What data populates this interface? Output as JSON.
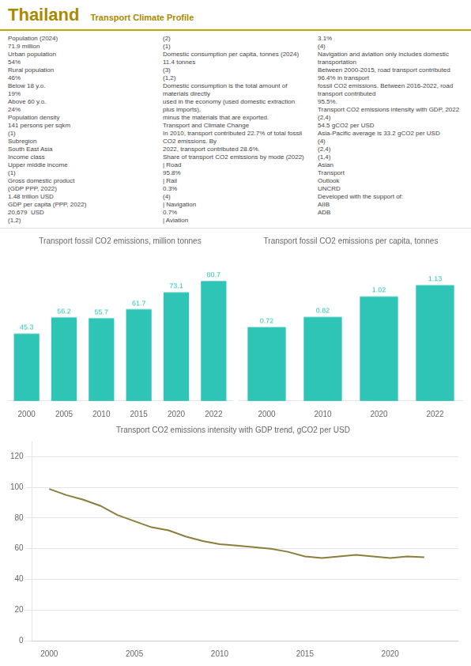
{
  "title": "Thailand",
  "subtitle": "Transport Climate Profile",
  "annotations": [
    "Population (2024)",
    "71.9 million",
    "Urban population",
    "54%",
    "Rural population",
    "46%",
    "Below 18 y.o.",
    "19%",
    "Above 60 y.o.",
    "24%",
    "Population density",
    "141 persons per sqkm",
    "(1)",
    "Subregion",
    "South East Asia",
    "Income class",
    "Upper middle income",
    "(1)",
    "Gross domestic product",
    "(GDP PPP, 2022)",
    "1.48 trillion USD",
    "GDP per capita (PPP, 2022)",
    "20,679  USD",
    "(1,2)",
    "(2)",
    "(1)",
    "Domestic consumption per capita, tonnes (2024)",
    "11.4 tonnes",
    "(3)",
    "(1,2)",
    "Domestic consumption is the total amount of materials directly",
    "used in the economy (used domestic extraction plus imports),",
    "minus the materials that are exported.",
    "Transport and Climate Change",
    "In 2010, transport contributed 22.7% of total fossil CO2 emissions. By\n2022, transport contributed 28.6%.",
    "Share of transport CO2 emissions by mode (2022)",
    "| Road",
    "95.8%",
    "| Rail",
    "0.3%",
    "(4)",
    "| Navigation",
    "0.7%",
    "| Aviation",
    "3.1%",
    "(4)",
    "Navigation and aviation only includes domestic transportation",
    "Between 2000-2015, road transport contributed 96.4% in transport\nfossil CO2 emissions. Between 2016-2022, road transport contributed\n95.5%.",
    "Transport CO2 emissions intensity with GDP, 2022",
    "(2,4)",
    "54.5 gCO2 per USD",
    "Asia-Pacific average is 33.2 gCO2 per USD",
    "(4)",
    "(2,4)",
    "(1,4)",
    "Asian",
    "Transport",
    "Outlook",
    "UNCRD",
    "Developed with the support of:",
    "AIIB",
    "ADB"
  ],
  "chart_data": [
    {
      "type": "bar",
      "title": "Transport fossil CO2 emissions, million tonnes",
      "categories": [
        "2000",
        "2005",
        "2010",
        "2015",
        "2020",
        "2022"
      ],
      "values": [
        45.3,
        56.2,
        55.7,
        61.7,
        73.1,
        80.7
      ],
      "color": "#2EC4B6",
      "ylim": [
        0,
        100
      ],
      "data_labels": true,
      "tick_labels": "x",
      "grid": false
    },
    {
      "type": "bar",
      "title": "Transport fossil CO2 emissions per capita, tonnes",
      "categories": [
        "2000",
        "2010",
        "2020",
        "2022"
      ],
      "values": [
        0.72,
        0.82,
        1.02,
        1.13
      ],
      "color": "#2EC4B6",
      "ylim": [
        0,
        1.45
      ],
      "data_labels": true,
      "tick_labels": "x",
      "grid": false
    },
    {
      "type": "line",
      "title": "Transport CO2 emissions intensity with GDP trend, gCO2 per USD",
      "x": [
        2000,
        2001,
        2002,
        2003,
        2004,
        2005,
        2006,
        2007,
        2008,
        2009,
        2010,
        2011,
        2012,
        2013,
        2014,
        2015,
        2016,
        2017,
        2018,
        2019,
        2020,
        2021,
        2022
      ],
      "values": [
        99,
        95,
        92,
        88,
        82,
        78,
        74,
        72,
        68,
        65,
        63,
        62,
        61,
        60,
        58,
        55,
        54,
        55,
        56,
        55,
        54,
        55,
        54.5
      ],
      "color": "#8B7D3A",
      "xlim": [
        1999,
        2024
      ],
      "xticks": [
        2000,
        2005,
        2010,
        2015,
        2020
      ],
      "ylim": [
        0,
        130
      ],
      "yticks": [
        0,
        20,
        40,
        60,
        80,
        100,
        120
      ],
      "grid": "y"
    }
  ]
}
